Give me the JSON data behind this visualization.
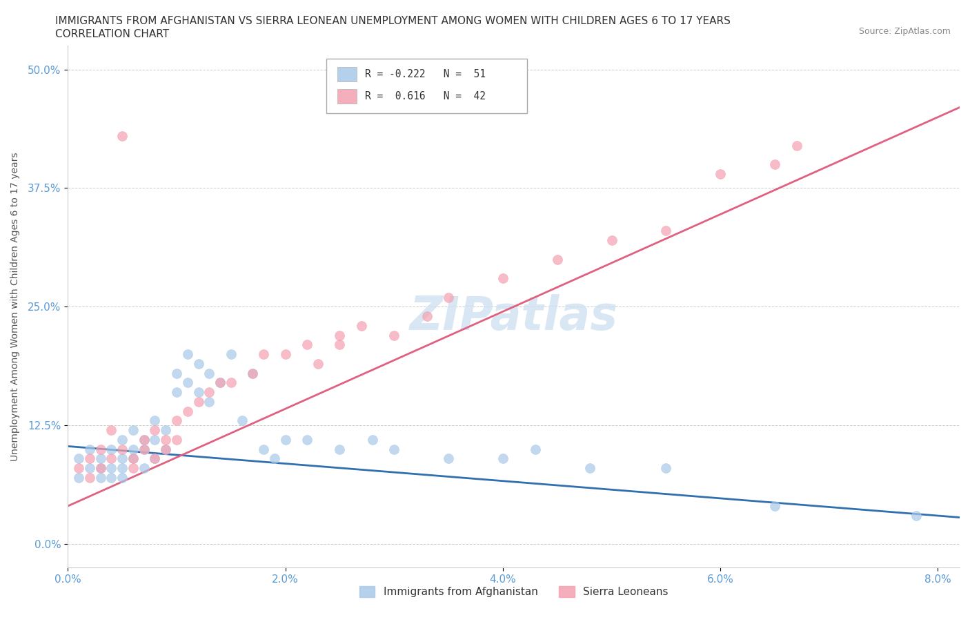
{
  "title_line1": "IMMIGRANTS FROM AFGHANISTAN VS SIERRA LEONEAN UNEMPLOYMENT AMONG WOMEN WITH CHILDREN AGES 6 TO 17 YEARS",
  "title_line2": "CORRELATION CHART",
  "source_text": "Source: ZipAtlas.com",
  "ylabel": "Unemployment Among Women with Children Ages 6 to 17 years",
  "xlabel_ticks": [
    "0.0%",
    "2.0%",
    "4.0%",
    "6.0%",
    "8.0%"
  ],
  "xlabel_vals": [
    0.0,
    0.02,
    0.04,
    0.06,
    0.08
  ],
  "ylabel_ticks": [
    "0.0%",
    "12.5%",
    "25.0%",
    "37.5%",
    "50.0%"
  ],
  "ylabel_vals": [
    0.0,
    0.125,
    0.25,
    0.375,
    0.5
  ],
  "xlim": [
    0.0,
    0.082
  ],
  "ylim": [
    -0.025,
    0.525
  ],
  "legend_blue_r": "R = -0.222",
  "legend_blue_n": "N =  51",
  "legend_pink_r": "R =  0.616",
  "legend_pink_n": "N =  42",
  "legend_label_blue": "Immigrants from Afghanistan",
  "legend_label_pink": "Sierra Leoneans",
  "watermark": "ZIPatlas",
  "title_fontsize": 11,
  "subtitle_fontsize": 11,
  "source_fontsize": 9,
  "blue_color": "#a8c8e8",
  "blue_line_color": "#3070b0",
  "pink_color": "#f4a0b0",
  "pink_line_color": "#e06080",
  "blue_scatter_alpha": 0.7,
  "pink_scatter_alpha": 0.7,
  "scatter_size": 100,
  "afghanistan_x": [
    0.001,
    0.001,
    0.002,
    0.002,
    0.003,
    0.003,
    0.003,
    0.004,
    0.004,
    0.004,
    0.005,
    0.005,
    0.005,
    0.005,
    0.006,
    0.006,
    0.006,
    0.007,
    0.007,
    0.007,
    0.008,
    0.008,
    0.008,
    0.009,
    0.009,
    0.01,
    0.01,
    0.011,
    0.011,
    0.012,
    0.012,
    0.013,
    0.013,
    0.014,
    0.015,
    0.016,
    0.017,
    0.018,
    0.019,
    0.02,
    0.022,
    0.025,
    0.028,
    0.03,
    0.035,
    0.04,
    0.043,
    0.048,
    0.055,
    0.065,
    0.078
  ],
  "afghanistan_y": [
    0.09,
    0.07,
    0.1,
    0.08,
    0.09,
    0.07,
    0.08,
    0.1,
    0.08,
    0.07,
    0.11,
    0.09,
    0.08,
    0.07,
    0.12,
    0.1,
    0.09,
    0.11,
    0.1,
    0.08,
    0.13,
    0.11,
    0.09,
    0.12,
    0.1,
    0.18,
    0.16,
    0.2,
    0.17,
    0.19,
    0.16,
    0.18,
    0.15,
    0.17,
    0.2,
    0.13,
    0.18,
    0.1,
    0.09,
    0.11,
    0.11,
    0.1,
    0.11,
    0.1,
    0.09,
    0.09,
    0.1,
    0.08,
    0.08,
    0.04,
    0.03
  ],
  "sierraleone_x": [
    0.001,
    0.002,
    0.002,
    0.003,
    0.003,
    0.004,
    0.004,
    0.005,
    0.005,
    0.006,
    0.006,
    0.007,
    0.007,
    0.008,
    0.008,
    0.009,
    0.009,
    0.01,
    0.01,
    0.011,
    0.012,
    0.013,
    0.014,
    0.015,
    0.017,
    0.018,
    0.02,
    0.022,
    0.023,
    0.025,
    0.027,
    0.025,
    0.03,
    0.033,
    0.035,
    0.04,
    0.045,
    0.05,
    0.055,
    0.06,
    0.065,
    0.067
  ],
  "sierraleone_y": [
    0.08,
    0.09,
    0.07,
    0.1,
    0.08,
    0.09,
    0.12,
    0.1,
    0.43,
    0.08,
    0.09,
    0.11,
    0.1,
    0.12,
    0.09,
    0.11,
    0.1,
    0.13,
    0.11,
    0.14,
    0.15,
    0.16,
    0.17,
    0.17,
    0.18,
    0.2,
    0.2,
    0.21,
    0.19,
    0.22,
    0.23,
    0.21,
    0.22,
    0.24,
    0.26,
    0.28,
    0.3,
    0.32,
    0.33,
    0.39,
    0.4,
    0.42
  ],
  "blue_line_x0": 0.0,
  "blue_line_y0": 0.103,
  "blue_line_x1": 0.082,
  "blue_line_y1": 0.028,
  "pink_line_x0": 0.0,
  "pink_line_y0": 0.04,
  "pink_line_x1": 0.082,
  "pink_line_y1": 0.46
}
